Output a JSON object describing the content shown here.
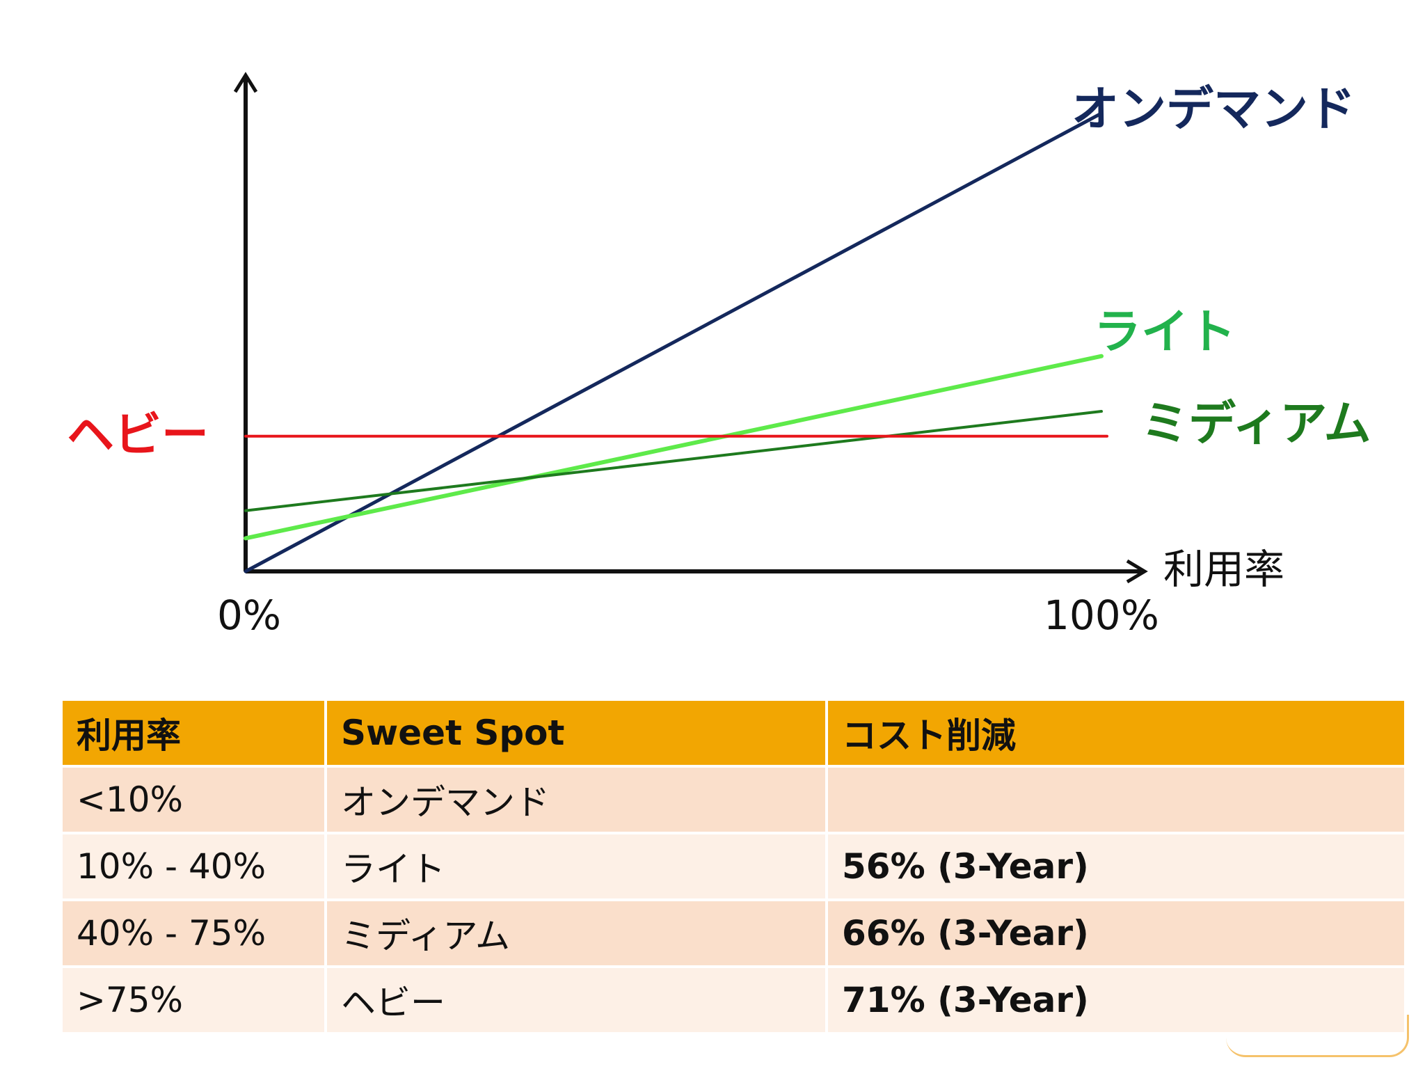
{
  "colors": {
    "on_demand": "#14285C",
    "light": "#5EEA4A",
    "light_label": "#22B24C",
    "medium": "#1E7A1E",
    "medium_label": "#1E7A1E",
    "heavy": "#E8151B",
    "axis": "#111111",
    "table_header": "#F2A602",
    "table_row_odd": "#FADFCB",
    "table_row_even": "#FDF0E6"
  },
  "chart_data": {
    "type": "line",
    "xlabel": "利用率",
    "x_tick_labels": [
      "0%",
      "100%"
    ],
    "xlim": [
      0,
      100
    ],
    "ylim": [
      0,
      100
    ],
    "grid": false,
    "legend": "none",
    "series": [
      {
        "name": "オンデマンド",
        "color_key": "on_demand",
        "label_color_key": "on_demand",
        "x": [
          0,
          100
        ],
        "y": [
          0,
          83
        ]
      },
      {
        "name": "ライト",
        "color_key": "light",
        "label_color_key": "light_label",
        "x": [
          0,
          100
        ],
        "y": [
          6,
          39
        ]
      },
      {
        "name": "ミディアム",
        "color_key": "medium",
        "label_color_key": "medium_label",
        "x": [
          0,
          100
        ],
        "y": [
          11,
          29
        ]
      },
      {
        "name": "ヘビー",
        "color_key": "heavy",
        "label_color_key": "heavy",
        "x": [
          0,
          100
        ],
        "y": [
          24.5,
          24.5
        ]
      }
    ]
  },
  "table": {
    "headers": [
      "利用率",
      "Sweet Spot",
      "コスト削減"
    ],
    "rows": [
      [
        "<10%",
        "オンデマンド",
        ""
      ],
      [
        "10% - 40%",
        "ライト",
        "56% (3-Year)"
      ],
      [
        "40% - 75%",
        "ミディアム",
        "66% (3-Year)"
      ],
      [
        ">75%",
        "ヘビー",
        "71% (3-Year)"
      ]
    ]
  }
}
